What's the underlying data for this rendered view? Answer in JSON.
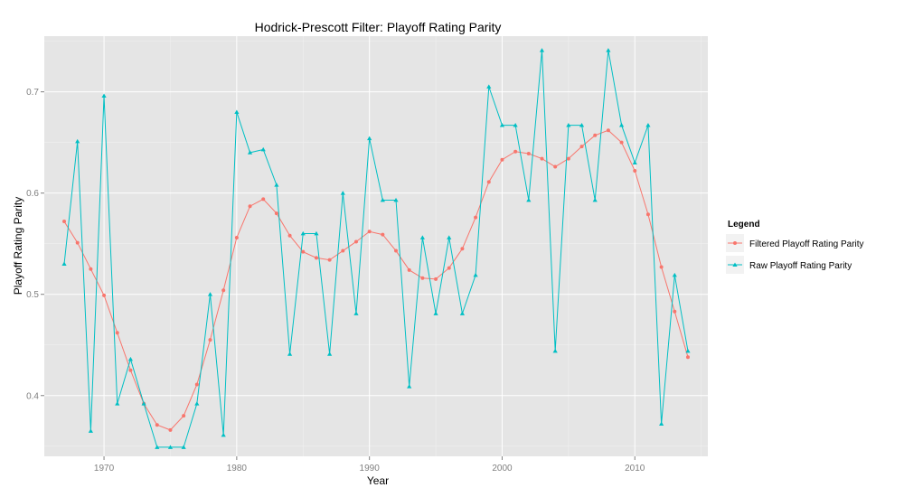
{
  "chart_data": {
    "type": "line",
    "title": "Hodrick-Prescott Filter: Playoff Rating Parity",
    "xlabel": "Year",
    "ylabel": "Playoff Rating Parity",
    "xlim": [
      1965.5,
      2015.5
    ],
    "ylim": [
      0.34,
      0.755
    ],
    "x_ticks": [
      1970,
      1980,
      1990,
      2000,
      2010
    ],
    "x_tick_labels": [
      "1970",
      "1980",
      "1990",
      "2000",
      "2010"
    ],
    "y_ticks": [
      0.4,
      0.5,
      0.6,
      0.7
    ],
    "y_tick_labels": [
      "0.4",
      "0.5",
      "0.6",
      "0.7"
    ],
    "grid": true,
    "legend_title": "Legend",
    "legend_position": "right",
    "x": [
      1967,
      1968,
      1969,
      1970,
      1971,
      1972,
      1973,
      1974,
      1975,
      1976,
      1977,
      1978,
      1979,
      1980,
      1981,
      1982,
      1983,
      1984,
      1985,
      1986,
      1987,
      1988,
      1989,
      1990,
      1991,
      1992,
      1993,
      1994,
      1995,
      1996,
      1997,
      1998,
      1999,
      2000,
      2001,
      2002,
      2003,
      2004,
      2005,
      2006,
      2007,
      2008,
      2009,
      2010,
      2011,
      2012,
      2013,
      2014
    ],
    "series": [
      {
        "name": "Filtered Playoff Rating Parity",
        "color": "#f8766d",
        "marker": "circle",
        "values": [
          0.572,
          0.551,
          0.525,
          0.499,
          0.462,
          0.425,
          0.392,
          0.371,
          0.366,
          0.38,
          0.411,
          0.455,
          0.504,
          0.556,
          0.587,
          0.594,
          0.58,
          0.558,
          0.542,
          0.536,
          0.534,
          0.543,
          0.552,
          0.562,
          0.559,
          0.543,
          0.524,
          0.516,
          0.515,
          0.526,
          0.545,
          0.576,
          0.611,
          0.633,
          0.641,
          0.639,
          0.634,
          0.626,
          0.634,
          0.646,
          0.657,
          0.662,
          0.65,
          0.622,
          0.579,
          0.527,
          0.483,
          0.438
        ]
      },
      {
        "name": "Raw Playoff Rating Parity",
        "color": "#00bfc4",
        "marker": "triangle",
        "values": [
          0.53,
          0.651,
          0.365,
          0.696,
          0.392,
          0.436,
          0.392,
          0.349,
          0.349,
          0.349,
          0.392,
          0.5,
          0.361,
          0.68,
          0.64,
          0.643,
          0.608,
          0.441,
          0.56,
          0.56,
          0.441,
          0.6,
          0.481,
          0.654,
          0.593,
          0.593,
          0.409,
          0.556,
          0.481,
          0.556,
          0.481,
          0.519,
          0.705,
          0.667,
          0.667,
          0.593,
          0.741,
          0.444,
          0.667,
          0.667,
          0.593,
          0.741,
          0.667,
          0.63,
          0.667,
          0.372,
          0.519,
          0.444
        ]
      }
    ]
  }
}
